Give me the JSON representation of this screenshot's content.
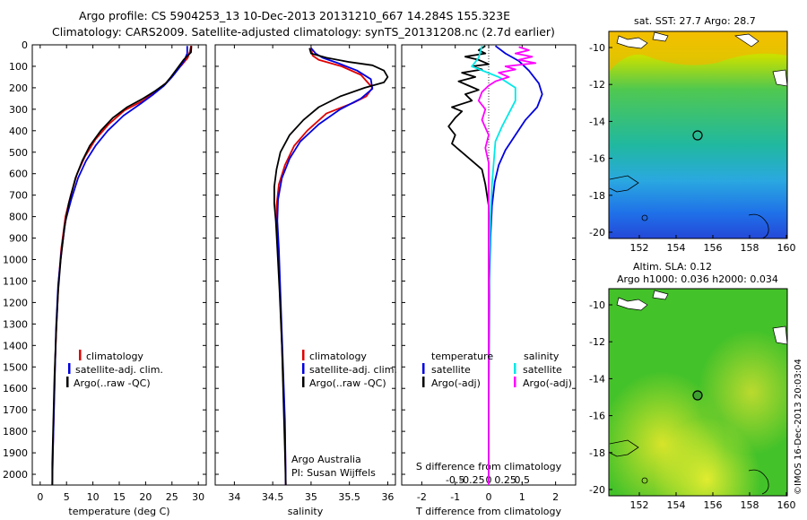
{
  "header": {
    "line1": "Argo profile: CS 5904253_13 10-Dec-2013 20131210_667 14.284S 155.323E",
    "line2": "Climatology: CARS2009. Satellite-adjusted climatology: synTS_20131208.nc (2.7d earlier)"
  },
  "colors": {
    "climatology": "#e00000",
    "satellite": "#0000e0",
    "argo": "#000000",
    "cyan": "#00e8e8",
    "magenta": "#ff00ff"
  },
  "chart_data": [
    {
      "type": "line",
      "xlabel": "temperature (deg C)",
      "xticks": [
        0,
        5,
        10,
        15,
        20,
        25,
        30
      ],
      "xlim": [
        -1.5,
        31.5
      ],
      "ylim": [
        0,
        2050
      ],
      "yticks": [
        0,
        100,
        200,
        300,
        400,
        500,
        600,
        700,
        800,
        900,
        1000,
        1100,
        1200,
        1300,
        1400,
        1500,
        1600,
        1700,
        1800,
        1900,
        2000
      ],
      "legend": [
        "climatology",
        "satellite-adj. clim.",
        "Argo(..raw -QC)"
      ],
      "series": [
        {
          "name": "climatology",
          "color": "#e00000",
          "points": [
            [
              28.6,
              5
            ],
            [
              28.4,
              30
            ],
            [
              28.0,
              60
            ],
            [
              27.0,
              90
            ],
            [
              25.5,
              130
            ],
            [
              24.0,
              175
            ],
            [
              22.0,
              215
            ],
            [
              19.5,
              260
            ],
            [
              16.0,
              305
            ],
            [
              13.0,
              370
            ],
            [
              10.5,
              440
            ],
            [
              8.5,
              520
            ],
            [
              7.0,
              600
            ],
            [
              5.8,
              700
            ],
            [
              4.8,
              800
            ],
            [
              4.0,
              950
            ],
            [
              3.5,
              1100
            ],
            [
              3.1,
              1300
            ],
            [
              2.8,
              1500
            ],
            [
              2.6,
              1700
            ],
            [
              2.4,
              1900
            ],
            [
              2.3,
              2050
            ]
          ]
        },
        {
          "name": "satellite-adj. clim.",
          "color": "#0000e0",
          "points": [
            [
              27.9,
              5
            ],
            [
              27.9,
              40
            ],
            [
              27.3,
              75
            ],
            [
              26.3,
              110
            ],
            [
              25.0,
              150
            ],
            [
              23.5,
              190
            ],
            [
              21.5,
              230
            ],
            [
              19.0,
              275
            ],
            [
              15.8,
              330
            ],
            [
              12.8,
              400
            ],
            [
              10.5,
              470
            ],
            [
              8.7,
              540
            ],
            [
              7.2,
              620
            ],
            [
              5.9,
              720
            ],
            [
              4.8,
              820
            ],
            [
              4.0,
              970
            ],
            [
              3.4,
              1120
            ],
            [
              3.0,
              1320
            ],
            [
              2.8,
              1520
            ],
            [
              2.6,
              1720
            ],
            [
              2.4,
              1920
            ],
            [
              2.3,
              2050
            ]
          ]
        },
        {
          "name": "Argo(..raw -QC)",
          "color": "#000000",
          "points": [
            [
              28.7,
              5
            ],
            [
              28.6,
              35
            ],
            [
              27.2,
              70
            ],
            [
              26.0,
              110
            ],
            [
              24.8,
              150
            ],
            [
              23.8,
              180
            ],
            [
              21.8,
              215
            ],
            [
              19.5,
              250
            ],
            [
              16.5,
              290
            ],
            [
              13.8,
              340
            ],
            [
              11.5,
              400
            ],
            [
              9.4,
              470
            ],
            [
              8.0,
              540
            ],
            [
              6.7,
              620
            ],
            [
              5.4,
              740
            ],
            [
              4.6,
              850
            ],
            [
              3.9,
              1000
            ],
            [
              3.4,
              1150
            ],
            [
              3.0,
              1350
            ],
            [
              2.7,
              1550
            ],
            [
              2.5,
              1750
            ],
            [
              2.3,
              1950
            ],
            [
              2.3,
              2050
            ]
          ]
        }
      ]
    },
    {
      "type": "line",
      "xlabel": "salinity",
      "xticks": [
        34,
        34.5,
        35,
        35.5,
        36
      ],
      "xlim": [
        33.75,
        36.1
      ],
      "ylim": [
        0,
        2050
      ],
      "legend": [
        "climatology",
        "satellite-adj. clim.",
        "Argo(..raw -QC)"
      ],
      "annotation": [
        "Argo Australia",
        "PI: Susan Wijffels"
      ],
      "series": [
        {
          "name": "climatology",
          "color": "#e00000",
          "points": [
            [
              35.0,
              15
            ],
            [
              35.02,
              50
            ],
            [
              35.1,
              70
            ],
            [
              35.4,
              100
            ],
            [
              35.65,
              140
            ],
            [
              35.8,
              200
            ],
            [
              35.72,
              240
            ],
            [
              35.55,
              270
            ],
            [
              35.2,
              320
            ],
            [
              34.95,
              400
            ],
            [
              34.78,
              470
            ],
            [
              34.66,
              560
            ],
            [
              34.58,
              650
            ],
            [
              34.55,
              750
            ],
            [
              34.56,
              850
            ],
            [
              34.58,
              1000
            ],
            [
              34.6,
              1200
            ],
            [
              34.62,
              1400
            ],
            [
              34.64,
              1600
            ],
            [
              34.66,
              1800
            ],
            [
              34.67,
              2050
            ]
          ]
        },
        {
          "name": "satellite-adj. clim.",
          "color": "#0000e0",
          "points": [
            [
              35.0,
              15
            ],
            [
              35.06,
              40
            ],
            [
              35.15,
              60
            ],
            [
              35.35,
              85
            ],
            [
              35.6,
              120
            ],
            [
              35.78,
              160
            ],
            [
              35.8,
              205
            ],
            [
              35.65,
              250
            ],
            [
              35.38,
              300
            ],
            [
              35.1,
              370
            ],
            [
              34.86,
              450
            ],
            [
              34.72,
              530
            ],
            [
              34.62,
              620
            ],
            [
              34.57,
              720
            ],
            [
              34.56,
              820
            ],
            [
              34.58,
              950
            ],
            [
              34.6,
              1150
            ],
            [
              34.62,
              1350
            ],
            [
              34.64,
              1550
            ],
            [
              34.66,
              1750
            ],
            [
              34.67,
              2050
            ]
          ]
        },
        {
          "name": "Argo(..raw -QC)",
          "color": "#000000",
          "points": [
            [
              34.98,
              15
            ],
            [
              35.0,
              40
            ],
            [
              35.2,
              60
            ],
            [
              35.5,
              80
            ],
            [
              35.8,
              95
            ],
            [
              35.95,
              120
            ],
            [
              36.0,
              150
            ],
            [
              35.95,
              175
            ],
            [
              35.7,
              200
            ],
            [
              35.38,
              240
            ],
            [
              35.1,
              290
            ],
            [
              34.9,
              350
            ],
            [
              34.72,
              420
            ],
            [
              34.6,
              500
            ],
            [
              34.55,
              580
            ],
            [
              34.52,
              660
            ],
            [
              34.52,
              740
            ],
            [
              34.54,
              820
            ],
            [
              34.56,
              950
            ],
            [
              34.59,
              1150
            ],
            [
              34.62,
              1400
            ],
            [
              34.64,
              1650
            ],
            [
              34.66,
              1900
            ],
            [
              34.67,
              2050
            ]
          ]
        }
      ]
    },
    {
      "type": "line",
      "xlabel": "T difference from climatology",
      "xlabel2": "S difference from climatology",
      "xticks": [
        -2,
        -1,
        0,
        1,
        2
      ],
      "xticks2": [
        {
          "v": -1,
          "label": "-0.5"
        },
        {
          "v": -0.5,
          "label": "-0.25"
        },
        {
          "v": 0,
          "label": "0"
        },
        {
          "v": 0.5,
          "label": "0.25"
        },
        {
          "v": 1,
          "label": "0.5"
        }
      ],
      "xlim": [
        -2.6,
        2.6
      ],
      "ylim": [
        0,
        2050
      ],
      "legend_left_title": "temperature",
      "legend_left": [
        "satellite",
        "Argo(-adj)"
      ],
      "legend_right_title": "salinity",
      "legend_right": [
        "satellite",
        "Argo(-adj)"
      ],
      "series": [
        {
          "name": "T satellite",
          "color": "#0000e0",
          "points": [
            [
              0.2,
              5
            ],
            [
              0.5,
              40
            ],
            [
              0.9,
              75
            ],
            [
              1.2,
              120
            ],
            [
              1.5,
              180
            ],
            [
              1.6,
              230
            ],
            [
              1.45,
              290
            ],
            [
              1.1,
              350
            ],
            [
              0.8,
              420
            ],
            [
              0.5,
              490
            ],
            [
              0.3,
              560
            ],
            [
              0.18,
              640
            ],
            [
              0.1,
              750
            ],
            [
              0.05,
              900
            ],
            [
              0.02,
              1100
            ],
            [
              0.01,
              1400
            ],
            [
              0.0,
              1800
            ],
            [
              0.0,
              2050
            ]
          ]
        },
        {
          "name": "T Argo(-adj)",
          "color": "#000000",
          "points": [
            [
              -0.1,
              5
            ],
            [
              -0.3,
              25
            ],
            [
              -0.1,
              40
            ],
            [
              -0.7,
              55
            ],
            [
              -0.3,
              70
            ],
            [
              0.0,
              90
            ],
            [
              -0.5,
              100
            ],
            [
              -0.2,
              115
            ],
            [
              -0.8,
              130
            ],
            [
              -0.4,
              150
            ],
            [
              -0.9,
              170
            ],
            [
              -0.6,
              190
            ],
            [
              -0.3,
              210
            ],
            [
              -0.7,
              230
            ],
            [
              -0.5,
              260
            ],
            [
              -1.1,
              290
            ],
            [
              -0.8,
              310
            ],
            [
              -1.0,
              340
            ],
            [
              -1.2,
              380
            ],
            [
              -1.0,
              420
            ],
            [
              -1.1,
              460
            ],
            [
              -0.8,
              500
            ],
            [
              -0.5,
              540
            ],
            [
              -0.2,
              580
            ],
            [
              -0.1,
              650
            ],
            [
              0.0,
              750
            ],
            [
              0.0,
              2050
            ]
          ]
        },
        {
          "name": "S satellite",
          "color": "#00e8e8",
          "points": [
            [
              -0.2,
              5
            ],
            [
              -0.3,
              60
            ],
            [
              -0.5,
              100
            ],
            [
              0.3,
              150
            ],
            [
              0.8,
              200
            ],
            [
              0.8,
              260
            ],
            [
              0.6,
              320
            ],
            [
              0.4,
              380
            ],
            [
              0.2,
              450
            ],
            [
              0.15,
              550
            ],
            [
              0.1,
              650
            ],
            [
              0.05,
              800
            ],
            [
              0.02,
              1000
            ],
            [
              0.0,
              1200
            ],
            [
              0.0,
              2050
            ]
          ]
        },
        {
          "name": "S Argo(-adj)",
          "color": "#ff00ff",
          "points": [
            [
              0.9,
              10
            ],
            [
              1.2,
              25
            ],
            [
              0.8,
              40
            ],
            [
              1.3,
              55
            ],
            [
              0.9,
              70
            ],
            [
              1.4,
              85
            ],
            [
              0.5,
              100
            ],
            [
              0.8,
              115
            ],
            [
              0.3,
              130
            ],
            [
              0.6,
              150
            ],
            [
              0.2,
              170
            ],
            [
              0.0,
              190
            ],
            [
              -0.2,
              220
            ],
            [
              -0.3,
              260
            ],
            [
              -0.1,
              300
            ],
            [
              -0.2,
              350
            ],
            [
              0.0,
              420
            ],
            [
              -0.1,
              480
            ],
            [
              0.0,
              550
            ],
            [
              0.0,
              2050
            ]
          ]
        }
      ]
    }
  ],
  "maps": {
    "sst": {
      "title": "sat. SST: 27.7  Argo: 28.7",
      "yticks": [
        "-10",
        "-12",
        "-14",
        "-16",
        "-18",
        "-20"
      ],
      "xticks": [
        "152",
        "154",
        "156",
        "158",
        "160"
      ]
    },
    "sla": {
      "title1": "Altim. SLA: 0.12",
      "title2": "Argo h1000: 0.036  h2000: 0.034",
      "yticks": [
        "-10",
        "-12",
        "-14",
        "-16",
        "-18",
        "-20"
      ],
      "xticks": [
        "152",
        "154",
        "156",
        "158",
        "160"
      ]
    }
  },
  "credit": "©IMOS 16-Dec-2013 20:03:04"
}
